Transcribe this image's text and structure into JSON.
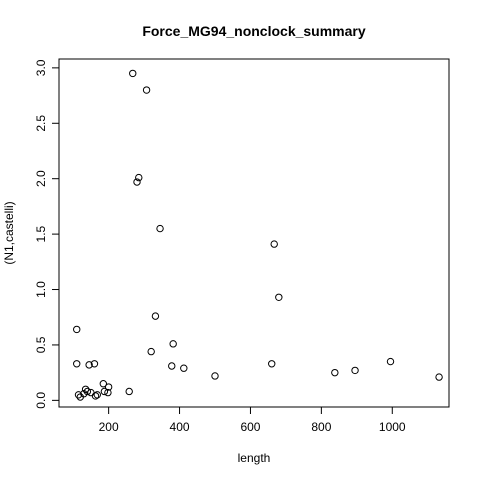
{
  "chart_data": {
    "type": "scatter",
    "title": "Force_MG94_nonclock_summary",
    "xlabel": "length",
    "ylabel": "(N1,castelli)",
    "xlim": [
      60,
      1160
    ],
    "ylim": [
      -0.06,
      3.08
    ],
    "xticks": [
      200,
      400,
      600,
      800,
      1000
    ],
    "xtick_labels": [
      "200",
      "400",
      "600",
      "800",
      "1000"
    ],
    "yticks": [
      0.0,
      0.5,
      1.0,
      1.5,
      2.0,
      2.5,
      3.0
    ],
    "ytick_labels": [
      "0.0",
      "0.5",
      "1.0",
      "1.5",
      "2.0",
      "2.5",
      "3.0"
    ],
    "grid": false,
    "legend": "none",
    "points": [
      {
        "x": 110,
        "y": 0.64
      },
      {
        "x": 110,
        "y": 0.33
      },
      {
        "x": 115,
        "y": 0.05
      },
      {
        "x": 120,
        "y": 0.03
      },
      {
        "x": 130,
        "y": 0.06
      },
      {
        "x": 135,
        "y": 0.1
      },
      {
        "x": 140,
        "y": 0.08
      },
      {
        "x": 145,
        "y": 0.32
      },
      {
        "x": 150,
        "y": 0.07
      },
      {
        "x": 160,
        "y": 0.33
      },
      {
        "x": 163,
        "y": 0.04
      },
      {
        "x": 168,
        "y": 0.05
      },
      {
        "x": 185,
        "y": 0.15
      },
      {
        "x": 188,
        "y": 0.08
      },
      {
        "x": 198,
        "y": 0.07
      },
      {
        "x": 200,
        "y": 0.12
      },
      {
        "x": 258,
        "y": 0.08
      },
      {
        "x": 268,
        "y": 2.95
      },
      {
        "x": 280,
        "y": 1.97
      },
      {
        "x": 285,
        "y": 2.01
      },
      {
        "x": 307,
        "y": 2.8
      },
      {
        "x": 320,
        "y": 0.44
      },
      {
        "x": 332,
        "y": 0.76
      },
      {
        "x": 345,
        "y": 1.55
      },
      {
        "x": 378,
        "y": 0.31
      },
      {
        "x": 382,
        "y": 0.51
      },
      {
        "x": 412,
        "y": 0.29
      },
      {
        "x": 500,
        "y": 0.22
      },
      {
        "x": 660,
        "y": 0.33
      },
      {
        "x": 667,
        "y": 1.41
      },
      {
        "x": 680,
        "y": 0.93
      },
      {
        "x": 838,
        "y": 0.25
      },
      {
        "x": 895,
        "y": 0.27
      },
      {
        "x": 995,
        "y": 0.35
      },
      {
        "x": 1132,
        "y": 0.21
      }
    ]
  }
}
